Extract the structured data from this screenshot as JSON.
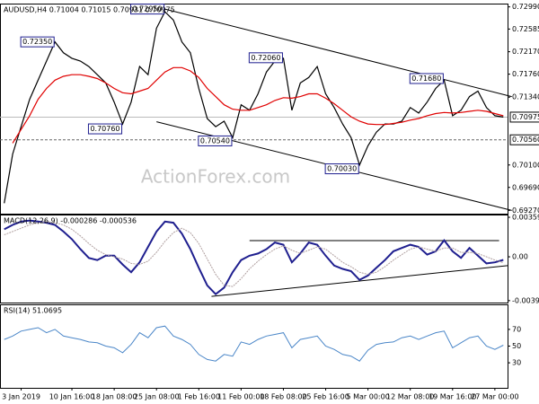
{
  "chart_data": [
    {
      "type": "line",
      "title": "AUDUSD,H4  0.71004 0.71015 0.70931 0.70975",
      "watermark": "ActionForex.com",
      "categories": [
        null,
        null,
        "3 Jan 2019",
        null,
        null,
        null,
        null,
        null,
        "10 Jan 16:00",
        null,
        null,
        null,
        null,
        "18 Jan 08:00",
        null,
        null,
        null,
        null,
        "25 Jan 08:00",
        null,
        null,
        null,
        null,
        "1 Feb 16:00",
        null,
        null,
        null,
        null,
        "11 Feb 00:00",
        null,
        null,
        null,
        null,
        "18 Feb 08:00",
        null,
        null,
        null,
        null,
        "25 Feb 16:00",
        null,
        null,
        null,
        null,
        "5 Mar 00:00",
        null,
        null,
        null,
        null,
        "12 Mar 08:00",
        null,
        null,
        null,
        null,
        "19 Mar 16:00",
        null,
        null,
        null,
        null,
        "27 Mar 00:00",
        null
      ],
      "series": [
        {
          "name": "AUDUSD",
          "color": "#000000",
          "values": [
            0.694,
            0.703,
            0.708,
            0.713,
            0.7165,
            0.72,
            0.7235,
            0.7215,
            0.7205,
            0.72,
            0.719,
            0.7175,
            0.716,
            0.7125,
            0.7085,
            0.7125,
            0.719,
            0.7175,
            0.726,
            0.729,
            0.7275,
            0.7235,
            0.7215,
            0.715,
            0.7095,
            0.708,
            0.709,
            0.706,
            0.712,
            0.711,
            0.714,
            0.718,
            0.72,
            0.7205,
            0.711,
            0.716,
            0.717,
            0.719,
            0.714,
            0.7115,
            0.7085,
            0.706,
            0.701,
            0.7045,
            0.707,
            0.7085,
            0.7085,
            0.709,
            0.7115,
            0.7105,
            0.7125,
            0.715,
            0.7165,
            0.71,
            0.711,
            0.7135,
            0.7145,
            0.7115,
            0.71,
            0.70975
          ]
        },
        {
          "name": "MA",
          "color": "#e00000",
          "values": [
            null,
            0.705,
            0.7075,
            0.71,
            0.713,
            0.715,
            0.7165,
            0.7172,
            0.7175,
            0.7175,
            0.7172,
            0.7168,
            0.716,
            0.715,
            0.7142,
            0.714,
            0.7145,
            0.715,
            0.7165,
            0.718,
            0.7188,
            0.7188,
            0.7182,
            0.717,
            0.715,
            0.7135,
            0.712,
            0.7112,
            0.711,
            0.711,
            0.7115,
            0.712,
            0.7128,
            0.7133,
            0.7132,
            0.7135,
            0.714,
            0.714,
            0.7132,
            0.7122,
            0.711,
            0.7098,
            0.709,
            0.7085,
            0.7084,
            0.7084,
            0.7086,
            0.7088,
            0.7092,
            0.7095,
            0.71,
            0.7104,
            0.7106,
            0.7105,
            0.7106,
            0.7108,
            0.711,
            0.7108,
            0.7104,
            0.71
          ]
        }
      ],
      "ylim": [
        0.6921,
        0.7305
      ],
      "yticks": [
        {
          "value": 0.7299,
          "label": "0.72990"
        },
        {
          "value": 0.72585,
          "label": "0.72585"
        },
        {
          "value": 0.7217,
          "label": "0.72170"
        },
        {
          "value": 0.7176,
          "label": "0.71760"
        },
        {
          "value": 0.7134,
          "label": "0.71340"
        },
        {
          "value": 0.701,
          "label": "0.70100"
        },
        {
          "value": 0.6969,
          "label": "0.69690"
        },
        {
          "value": 0.6927,
          "label": "0.69270"
        }
      ],
      "price_lines": [
        {
          "value": 0.70975,
          "label": "0.70975"
        },
        {
          "value": 0.7056,
          "label": "0.70560"
        }
      ],
      "annotations": [
        {
          "value": 0.7235,
          "label": "0.72350",
          "x": 6
        },
        {
          "value": 0.7295,
          "label": "0.72950",
          "x": 19
        },
        {
          "value": 0.7206,
          "label": "0.72060",
          "x": 33
        },
        {
          "value": 0.7168,
          "label": "0.71680",
          "x": 52
        },
        {
          "value": 0.7076,
          "label": "0.70760",
          "x": 14
        },
        {
          "value": 0.7054,
          "label": "0.70540",
          "x": 27
        },
        {
          "value": 0.7003,
          "label": "0.70030",
          "x": 42
        }
      ],
      "trendlines": [
        {
          "x": [
            19,
            60
          ],
          "y": [
            0.7295,
            0.7135
          ]
        },
        {
          "x": [
            18,
            60
          ],
          "y": [
            0.7089,
            0.6927
          ]
        }
      ]
    },
    {
      "type": "line",
      "title": "MACD(12,26,9) -0.000286 -0.000536",
      "series": [
        {
          "name": "MACD",
          "color": "#1f1f8f",
          "width": 2,
          "values": [
            0.0025,
            0.0029,
            0.0032,
            0.0033,
            0.0032,
            0.0031,
            0.0029,
            0.0023,
            0.0016,
            0.0007,
            -0.0001,
            -0.0003,
            0.0001,
            0.0001,
            -0.0007,
            -0.0014,
            -0.0005,
            0.0009,
            0.0023,
            0.0032,
            0.0031,
            0.0021,
            0.0007,
            -0.001,
            -0.0026,
            -0.0034,
            -0.0028,
            -0.0014,
            -0.0003,
            0.0001,
            0.0003,
            0.0007,
            0.0013,
            0.0011,
            -0.0005,
            0.0003,
            0.0013,
            0.0011,
            0.0001,
            -0.0008,
            -0.0011,
            -0.0013,
            -0.0021,
            -0.0017,
            -0.001,
            -0.0003,
            0.0005,
            0.0008,
            0.0011,
            0.0009,
            0.0002,
            0.0005,
            0.0015,
            0.0005,
            -0.0001,
            0.0008,
            0.0001,
            -0.0006,
            -0.0005,
            -0.000286
          ]
        },
        {
          "name": "Signal",
          "color": "#b0a0a0",
          "width": 1,
          "values": [
            0.002,
            0.0023,
            0.0026,
            0.0029,
            0.0031,
            0.0032,
            0.0031,
            0.0029,
            0.0025,
            0.0019,
            0.0012,
            0.0006,
            0.0002,
            0.0,
            -0.0002,
            -0.0006,
            -0.0007,
            -0.0004,
            0.0004,
            0.0014,
            0.0022,
            0.0026,
            0.0022,
            0.0012,
            -0.0002,
            -0.0016,
            -0.0026,
            -0.0027,
            -0.002,
            -0.0011,
            -0.0004,
            0.0002,
            0.0007,
            0.001,
            0.0006,
            0.0003,
            0.0006,
            0.0009,
            0.0007,
            0.0001,
            -0.0005,
            -0.0009,
            -0.0014,
            -0.0016,
            -0.0014,
            -0.0009,
            -0.0003,
            0.0002,
            0.0007,
            0.0009,
            0.0007,
            0.0005,
            0.0008,
            0.0008,
            0.0004,
            0.0004,
            0.0003,
            0.0,
            -0.0003,
            -0.000536
          ]
        }
      ],
      "ylim": [
        -0.00416,
        0.00384
      ],
      "yticks": [
        {
          "value": 0.003592,
          "label": "0.003592"
        },
        {
          "value": 0,
          "label": "0.00"
        },
        {
          "value": -0.003986,
          "label": "-0.003986"
        }
      ],
      "trendlines": [
        {
          "x": [
            29,
            58.5
          ],
          "y": [
            0.00147,
            0.00147
          ]
        },
        {
          "x": [
            24.5,
            59.5
          ],
          "y": [
            -0.0036,
            -0.0008
          ]
        }
      ]
    },
    {
      "type": "line",
      "title": "RSI(14) 51.0695",
      "series": [
        {
          "name": "RSI",
          "color": "#4a86c8",
          "width": 1,
          "values": [
            58,
            62,
            68,
            70,
            72,
            66,
            70,
            62,
            60,
            58,
            55,
            54,
            50,
            48,
            42,
            52,
            66,
            60,
            72,
            74,
            62,
            58,
            52,
            40,
            34,
            32,
            40,
            38,
            55,
            52,
            58,
            62,
            64,
            66,
            48,
            58,
            60,
            62,
            50,
            46,
            40,
            38,
            32,
            45,
            52,
            54,
            55,
            60,
            62,
            58,
            62,
            66,
            68,
            48,
            54,
            60,
            62,
            50,
            46,
            51.0695
          ]
        }
      ],
      "ylim": [
        0,
        100
      ],
      "yticks": [
        30,
        50,
        70
      ]
    }
  ]
}
